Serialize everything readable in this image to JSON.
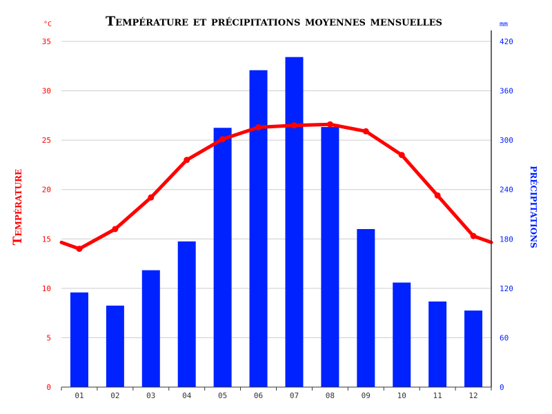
{
  "colors": {
    "temperature": "#ff0000",
    "precipitation": "#0022ff",
    "grid": "#cccccc",
    "axis": "#333333",
    "month_label": "#333333"
  },
  "chart_data": {
    "type": "bar",
    "title": "Température et précipitations moyennes mensuelles",
    "categories": [
      "01",
      "02",
      "03",
      "04",
      "05",
      "06",
      "07",
      "08",
      "09",
      "10",
      "11",
      "12"
    ],
    "left_axis": {
      "title": "Température",
      "unit": "°C",
      "ylim": [
        0,
        35
      ],
      "ticks": [
        "0",
        "5",
        "10",
        "15",
        "20",
        "25",
        "30",
        "35"
      ]
    },
    "right_axis": {
      "title": "précipitations",
      "unit": "mm",
      "ylim": [
        0,
        420
      ],
      "ticks": [
        "0",
        "60",
        "120",
        "180",
        "240",
        "300",
        "360",
        "420"
      ]
    },
    "series": [
      {
        "name": "Précipitations",
        "type": "bar",
        "axis": "right",
        "values": [
          115,
          99,
          142,
          177,
          315,
          385,
          401,
          316,
          192,
          127,
          104,
          93
        ]
      },
      {
        "name": "Température",
        "type": "line",
        "axis": "left",
        "values": [
          14.0,
          16.0,
          19.2,
          23.0,
          25.1,
          26.3,
          26.5,
          26.6,
          25.9,
          23.5,
          19.4,
          15.3
        ]
      }
    ],
    "grid": true
  }
}
